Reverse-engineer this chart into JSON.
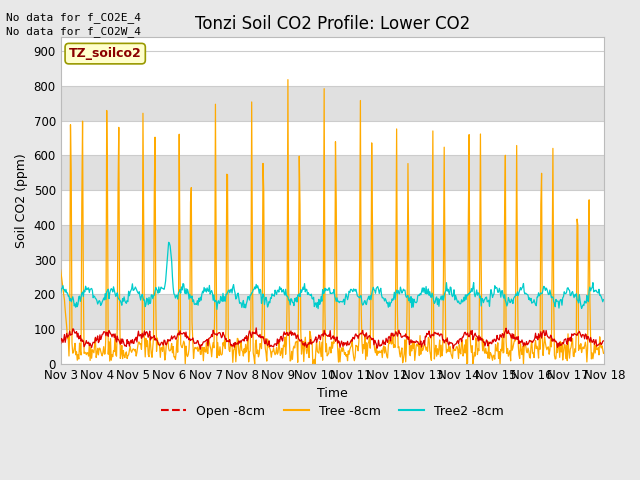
{
  "title": "Tonzi Soil CO2 Profile: Lower CO2",
  "xlabel": "Time",
  "ylabel": "Soil CO2 (ppm)",
  "no_data_text": [
    "No data for f_CO2E_4",
    "No data for f_CO2W_4"
  ],
  "watermark_text": "TZ_soilco2",
  "ylim": [
    0,
    940
  ],
  "yticks": [
    0,
    100,
    200,
    300,
    400,
    500,
    600,
    700,
    800,
    900
  ],
  "xtick_labels": [
    "Nov 3",
    "Nov 4",
    "Nov 5",
    "Nov 6",
    "Nov 7",
    "Nov 8",
    "Nov 9",
    "Nov 10",
    "Nov 11",
    "Nov 12",
    "Nov 13",
    "Nov 14",
    "Nov 15",
    "Nov 16",
    "Nov 17",
    "Nov 18"
  ],
  "legend_entries": [
    "Open -8cm",
    "Tree -8cm",
    "Tree2 -8cm"
  ],
  "line_colors": [
    "#dd0000",
    "#ffaa00",
    "#00cccc"
  ],
  "bg_color": "#ffffff",
  "fig_bg_color": "#e8e8e8",
  "band_color": "#e0e0e0",
  "grid_color": "#cccccc",
  "title_fontsize": 12,
  "label_fontsize": 9,
  "tick_fontsize": 8.5,
  "nodata_fontsize": 8,
  "watermark_fontsize": 9
}
